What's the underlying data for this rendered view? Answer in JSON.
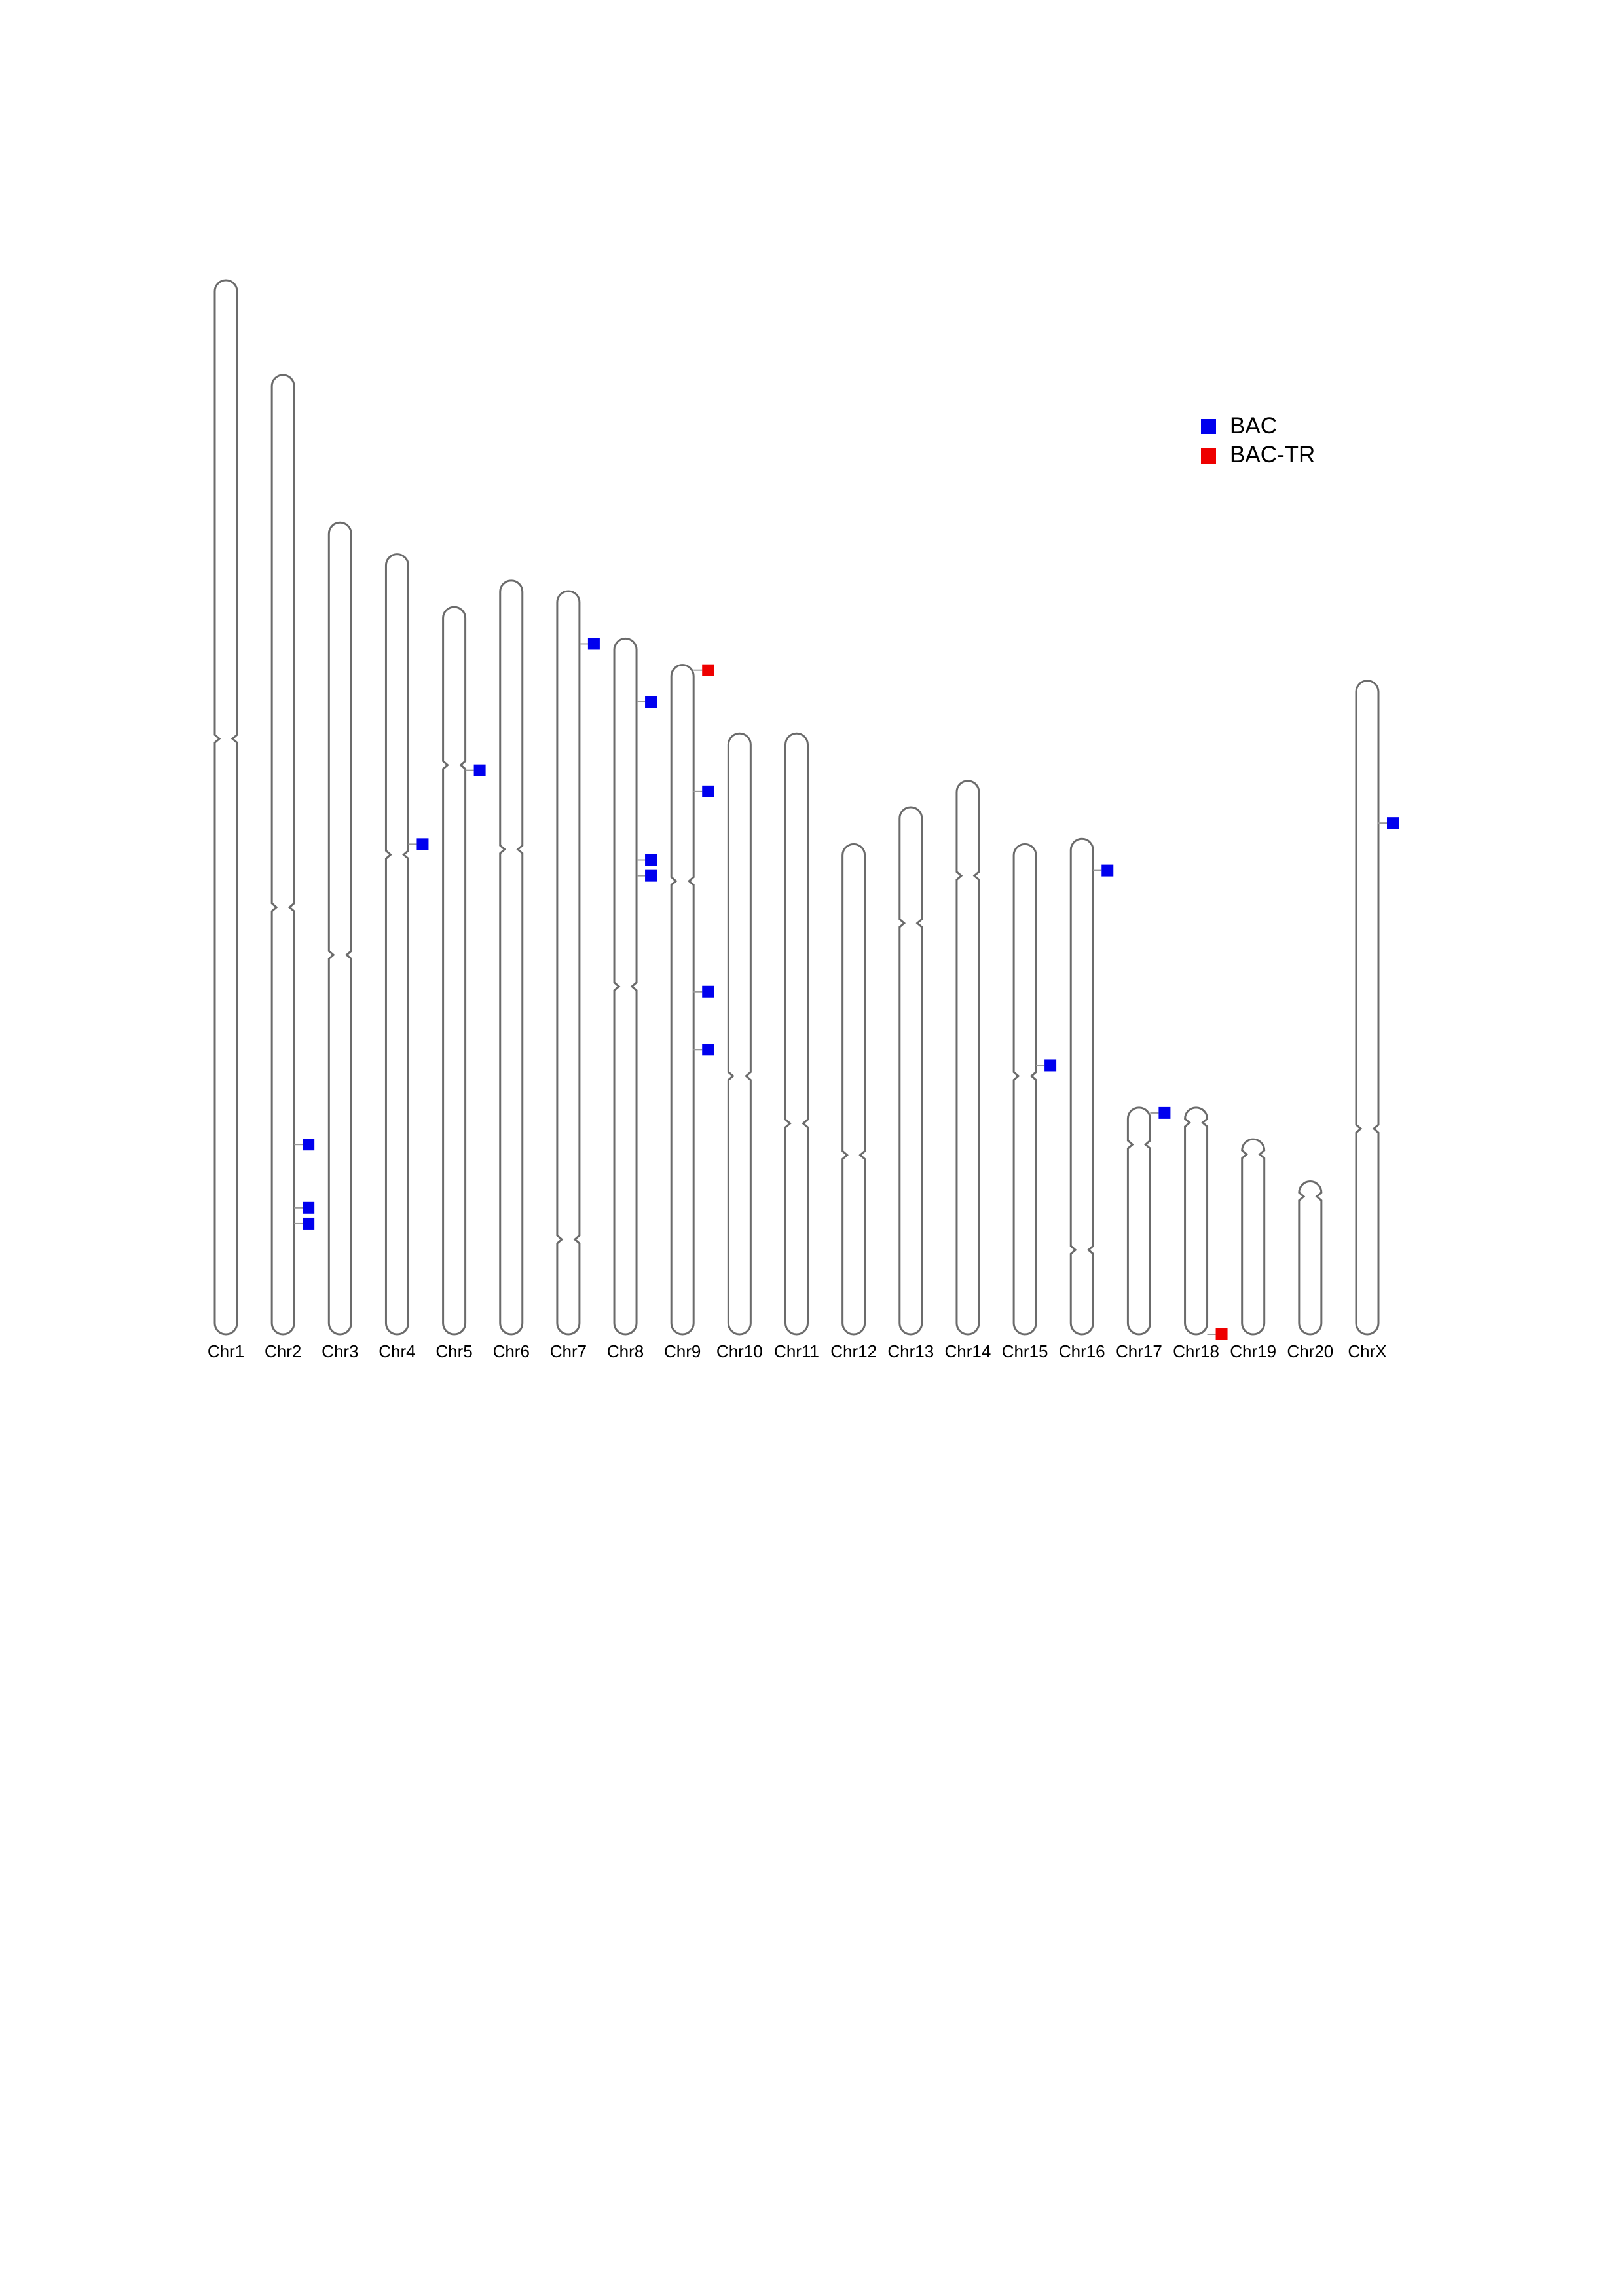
{
  "chart_data": {
    "type": "chromosome-ideogram",
    "title": "",
    "unit": "Mb",
    "chromosomes": [
      {
        "name": "Chr1",
        "length": 200,
        "centromere": 113
      },
      {
        "name": "Chr2",
        "length": 182,
        "centromere": 81
      },
      {
        "name": "Chr3",
        "length": 154,
        "centromere": 72
      },
      {
        "name": "Chr4",
        "length": 148,
        "centromere": 91
      },
      {
        "name": "Chr5",
        "length": 138,
        "centromere": 108
      },
      {
        "name": "Chr6",
        "length": 143,
        "centromere": 92
      },
      {
        "name": "Chr7",
        "length": 141,
        "centromere": 18
      },
      {
        "name": "Chr8",
        "length": 132,
        "centromere": 66
      },
      {
        "name": "Chr9",
        "length": 127,
        "centromere": 86
      },
      {
        "name": "Chr10",
        "length": 114,
        "centromere": 49
      },
      {
        "name": "Chr11",
        "length": 114,
        "centromere": 40
      },
      {
        "name": "Chr12",
        "length": 93,
        "centromere": 34
      },
      {
        "name": "Chr13",
        "length": 100,
        "centromere": 78
      },
      {
        "name": "Chr14",
        "length": 105,
        "centromere": 87
      },
      {
        "name": "Chr15",
        "length": 93,
        "centromere": 49
      },
      {
        "name": "Chr16",
        "length": 94,
        "centromere": 16
      },
      {
        "name": "Chr17",
        "length": 43,
        "centromere": 36
      },
      {
        "name": "Chr18",
        "length": 43,
        "centromere": 43
      },
      {
        "name": "Chr19",
        "length": 37,
        "centromere": 37
      },
      {
        "name": "Chr20",
        "length": 29,
        "centromere": 29
      },
      {
        "name": "ChrX",
        "length": 124,
        "centromere": 39
      }
    ],
    "series": [
      {
        "name": "BAC",
        "color": "#0000ee",
        "points": [
          {
            "chr": "Chr2",
            "pos": 36
          },
          {
            "chr": "Chr2",
            "pos": 24
          },
          {
            "chr": "Chr2",
            "pos": 21
          },
          {
            "chr": "Chr4",
            "pos": 93
          },
          {
            "chr": "Chr5",
            "pos": 107
          },
          {
            "chr": "Chr7",
            "pos": 131
          },
          {
            "chr": "Chr8",
            "pos": 120
          },
          {
            "chr": "Chr8",
            "pos": 90
          },
          {
            "chr": "Chr8",
            "pos": 87
          },
          {
            "chr": "Chr9",
            "pos": 103
          },
          {
            "chr": "Chr9",
            "pos": 65
          },
          {
            "chr": "Chr9",
            "pos": 54
          },
          {
            "chr": "Chr15",
            "pos": 51
          },
          {
            "chr": "Chr16",
            "pos": 88
          },
          {
            "chr": "Chr17",
            "pos": 42
          },
          {
            "chr": "ChrX",
            "pos": 97
          }
        ]
      },
      {
        "name": "BAC-TR",
        "color": "#ee0000",
        "points": [
          {
            "chr": "Chr9",
            "pos": 126
          },
          {
            "chr": "Chr18",
            "pos": 0
          }
        ]
      }
    ],
    "legend": {
      "position": "top-right",
      "entries": [
        "BAC",
        "BAC-TR"
      ]
    }
  }
}
